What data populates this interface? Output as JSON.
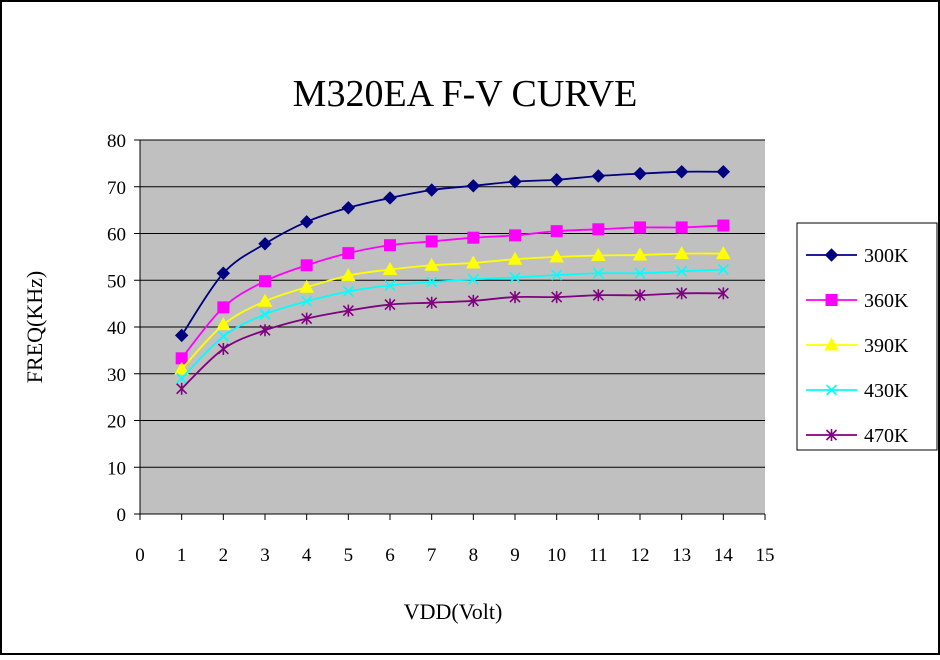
{
  "chart_data": {
    "type": "line",
    "title": "M320EA F-V CURVE",
    "xlabel": "VDD(Volt)",
    "ylabel": "FREQ(KHz)",
    "xlim": [
      0,
      15
    ],
    "ylim": [
      0,
      80
    ],
    "x_ticks": [
      "0",
      "1",
      "2",
      "3",
      "4",
      "5",
      "6",
      "7",
      "8",
      "9",
      "10",
      "11",
      "12",
      "13",
      "14",
      "15"
    ],
    "y_ticks": [
      "0",
      "10",
      "20",
      "30",
      "40",
      "50",
      "60",
      "70",
      "80"
    ],
    "grid": "horizontal",
    "plot_background": "#c0c0c0",
    "legend_position": "right",
    "x": [
      1,
      2,
      3,
      4,
      5,
      6,
      7,
      8,
      9,
      10,
      11,
      12,
      13,
      14
    ],
    "series": [
      {
        "name": "300K",
        "color": "#000080",
        "marker": "diamond",
        "values": [
          38.2,
          51.5,
          57.8,
          62.5,
          65.5,
          67.6,
          69.3,
          70.2,
          71.1,
          71.5,
          72.3,
          72.8,
          73.2,
          73.2
        ]
      },
      {
        "name": "360K",
        "color": "#ff00ff",
        "marker": "square",
        "values": [
          33.3,
          44.2,
          49.8,
          53.2,
          55.8,
          57.5,
          58.3,
          59.1,
          59.6,
          60.5,
          60.9,
          61.3,
          61.3,
          61.7
        ]
      },
      {
        "name": "390K",
        "color": "#ffff00",
        "marker": "triangle",
        "values": [
          31.0,
          40.5,
          45.5,
          48.5,
          51.0,
          52.3,
          53.2,
          53.7,
          54.5,
          55.0,
          55.3,
          55.4,
          55.7,
          55.7
        ]
      },
      {
        "name": "430K",
        "color": "#00ffff",
        "marker": "x",
        "values": [
          29.0,
          38.0,
          42.7,
          45.5,
          47.6,
          48.9,
          49.6,
          50.2,
          50.6,
          51.1,
          51.5,
          51.5,
          51.9,
          52.3
        ]
      },
      {
        "name": "470K",
        "color": "#800080",
        "marker": "star",
        "values": [
          26.8,
          35.3,
          39.3,
          41.8,
          43.5,
          44.8,
          45.2,
          45.6,
          46.4,
          46.4,
          46.8,
          46.8,
          47.2,
          47.2
        ]
      }
    ]
  }
}
